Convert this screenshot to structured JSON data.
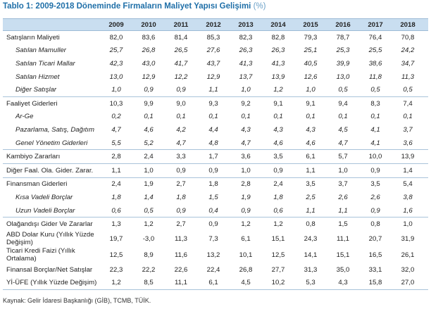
{
  "title": {
    "main": "Tablo 1: 2009-2018 Döneminde Firmaların Maliyet Yapısı Gelişimi",
    "unit": "(%)"
  },
  "table": {
    "years": [
      "2009",
      "2010",
      "2011",
      "2012",
      "2013",
      "2014",
      "2015",
      "2016",
      "2017",
      "2018"
    ],
    "rows": [
      {
        "label": "Satışların Maliyeti",
        "values": [
          "82,0",
          "83,6",
          "81,4",
          "85,3",
          "82,3",
          "82,8",
          "79,3",
          "78,7",
          "76,4",
          "70,8"
        ]
      },
      {
        "label": "Satılan Mamuller",
        "values": [
          "25,7",
          "26,8",
          "26,5",
          "27,6",
          "26,3",
          "26,3",
          "25,1",
          "25,3",
          "25,5",
          "24,2"
        ]
      },
      {
        "label": "Satılan Ticari Mallar",
        "values": [
          "42,3",
          "43,0",
          "41,7",
          "43,7",
          "41,3",
          "41,3",
          "40,5",
          "39,9",
          "38,6",
          "34,7"
        ]
      },
      {
        "label": "Satılan Hizmet",
        "values": [
          "13,0",
          "12,9",
          "12,2",
          "12,9",
          "13,7",
          "13,9",
          "12,6",
          "13,0",
          "11,8",
          "11,3"
        ]
      },
      {
        "label": "Diğer Satışlar",
        "values": [
          "1,0",
          "0,9",
          "0,9",
          "1,1",
          "1,0",
          "1,2",
          "1,0",
          "0,5",
          "0,5",
          "0,5"
        ]
      },
      {
        "label": "Faaliyet Giderleri",
        "values": [
          "10,3",
          "9,9",
          "9,0",
          "9,3",
          "9,2",
          "9,1",
          "9,1",
          "9,4",
          "8,3",
          "7,4"
        ]
      },
      {
        "label": "Ar-Ge",
        "values": [
          "0,2",
          "0,1",
          "0,1",
          "0,1",
          "0,1",
          "0,1",
          "0,1",
          "0,1",
          "0,1",
          "0,1"
        ]
      },
      {
        "label": "Pazarlama, Satış, Dağıtım",
        "values": [
          "4,7",
          "4,6",
          "4,2",
          "4,4",
          "4,3",
          "4,3",
          "4,3",
          "4,5",
          "4,1",
          "3,7"
        ]
      },
      {
        "label": "Genel Yönetim Giderleri",
        "values": [
          "5,5",
          "5,2",
          "4,7",
          "4,8",
          "4,7",
          "4,6",
          "4,6",
          "4,7",
          "4,1",
          "3,6"
        ]
      },
      {
        "label": "Kambiyo Zararları",
        "values": [
          "2,8",
          "2,4",
          "3,3",
          "1,7",
          "3,6",
          "3,5",
          "6,1",
          "5,7",
          "10,0",
          "13,9"
        ]
      },
      {
        "label": "Diğer Faal. Ola. Gider. Zarar.",
        "values": [
          "1,1",
          "1,0",
          "0,9",
          "0,9",
          "1,0",
          "0,9",
          "1,1",
          "1,0",
          "0,9",
          "1,4"
        ]
      },
      {
        "label": "Finansman Giderleri",
        "values": [
          "2,4",
          "1,9",
          "2,7",
          "1,8",
          "2,8",
          "2,4",
          "3,5",
          "3,7",
          "3,5",
          "5,4"
        ]
      },
      {
        "label": "Kısa Vadeli Borçlar",
        "values": [
          "1,8",
          "1,4",
          "1,8",
          "1,5",
          "1,9",
          "1,8",
          "2,5",
          "2,6",
          "2,6",
          "3,8"
        ]
      },
      {
        "label": "Uzun Vadeli Borçlar",
        "values": [
          "0,6",
          "0,5",
          "0,9",
          "0,4",
          "0,9",
          "0,6",
          "1,1",
          "1,1",
          "0,9",
          "1,6"
        ]
      },
      {
        "label": "Olağandışı Gider Ve Zararlar",
        "values": [
          "1,3",
          "1,2",
          "2,7",
          "0,9",
          "1,2",
          "1,2",
          "0,8",
          "1,5",
          "0,8",
          "1,0"
        ]
      },
      {
        "label_lines": [
          "ABD Dolar Kuru (Yıllık Yüzde",
          "Değişim)"
        ],
        "values": [
          "19,7",
          "-3,0",
          "11,3",
          "7,3",
          "6,1",
          "15,1",
          "24,3",
          "11,1",
          "20,7",
          "31,9"
        ]
      },
      {
        "label_lines": [
          "Ticari Kredi Faizi (Yıllık",
          "Ortalama)"
        ],
        "values": [
          "12,5",
          "8,9",
          "11,6",
          "13,2",
          "10,1",
          "12,5",
          "14,1",
          "15,1",
          "16,5",
          "26,1"
        ]
      },
      {
        "label": "Finansal Borçlar/Net Satışlar",
        "values": [
          "22,3",
          "22,2",
          "22,6",
          "22,4",
          "26,8",
          "27,7",
          "31,3",
          "35,0",
          "33,1",
          "32,0"
        ]
      },
      {
        "label": "Yİ-ÜFE (Yıllık Yüzde Değişim)",
        "values": [
          "1,2",
          "8,5",
          "11,1",
          "6,1",
          "4,5",
          "10,2",
          "5,3",
          "4,3",
          "15,8",
          "27,0"
        ]
      }
    ]
  },
  "footer": "Kaynak: Gelir İdaresi Başkanlığı (GİB), TCMB, TÜİK.",
  "colors": {
    "title": "#1f6fa8",
    "header_bg": "#c9def0",
    "rule": "#a9c3da"
  }
}
